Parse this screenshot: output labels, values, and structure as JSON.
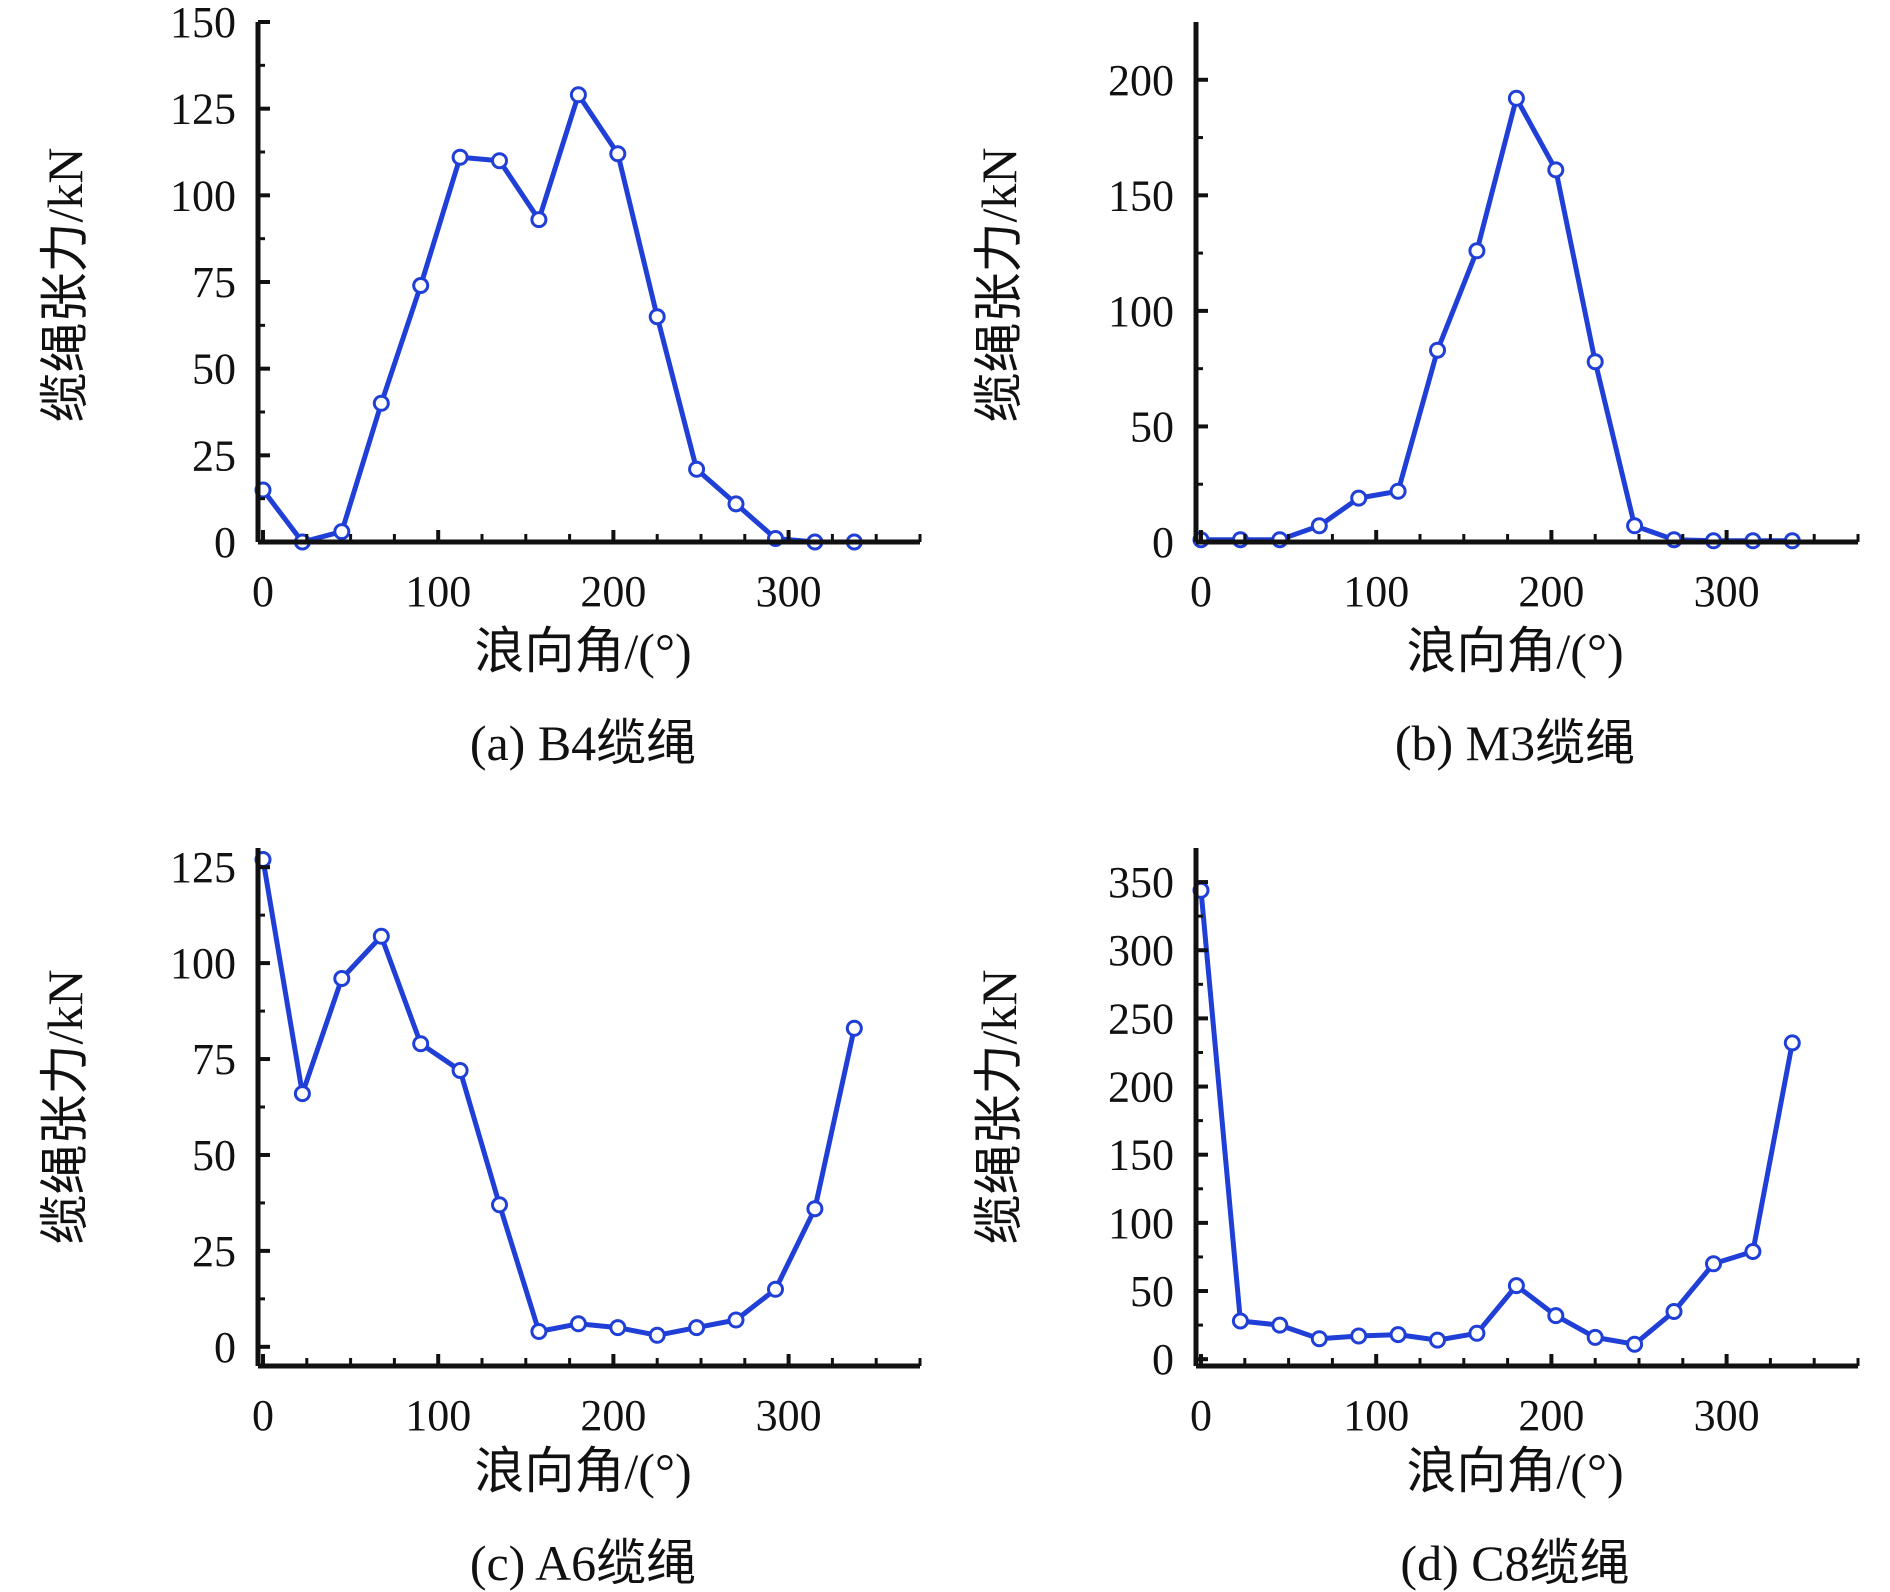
{
  "figure": {
    "style": {
      "line_color": "#1f3fd6",
      "marker_fill": "#ffffff",
      "axis_color": "#111111"
    }
  },
  "chart_data": [
    {
      "id": "a",
      "type": "line",
      "caption": "(a) B4缆绳",
      "xlabel": "浪向角/(°)",
      "ylabel": "缆绳张力/kN",
      "xlim": [
        0,
        375
      ],
      "ylim": [
        0,
        150
      ],
      "xticks": [
        0,
        100,
        200,
        300
      ],
      "xtick_labels": [
        "0",
        "100",
        "200",
        "300"
      ],
      "yticks": [
        0,
        25,
        50,
        75,
        100,
        125,
        150
      ],
      "ytick_labels": [
        "0",
        "25",
        "50",
        "75",
        "100",
        "125",
        "150"
      ],
      "grid": false,
      "series": [
        {
          "name": "B4缆绳",
          "x": [
            0,
            22.5,
            45,
            67.5,
            90,
            112.5,
            135,
            157.5,
            180,
            202.5,
            225,
            247.5,
            270,
            292.5,
            315,
            337.5
          ],
          "y": [
            15,
            0,
            3,
            40,
            74,
            111,
            110,
            93,
            129,
            112,
            65,
            21,
            11,
            1,
            0,
            0
          ]
        }
      ]
    },
    {
      "id": "b",
      "type": "line",
      "caption": "(b) M3缆绳",
      "xlabel": "浪向角/(°)",
      "ylabel": "缆绳张力/kN",
      "xlim": [
        0,
        375
      ],
      "ylim": [
        0,
        225
      ],
      "xticks": [
        0,
        100,
        200,
        300
      ],
      "xtick_labels": [
        "0",
        "100",
        "200",
        "300"
      ],
      "yticks": [
        0,
        50,
        100,
        150,
        200
      ],
      "ytick_labels": [
        "0",
        "50",
        "100",
        "150",
        "200"
      ],
      "grid": false,
      "series": [
        {
          "name": "M3缆绳",
          "x": [
            0,
            22.5,
            45,
            67.5,
            90,
            112.5,
            135,
            157.5,
            180,
            202.5,
            225,
            247.5,
            270,
            292.5,
            315,
            337.5
          ],
          "y": [
            1,
            1,
            1,
            7,
            19,
            22,
            83,
            126,
            192,
            161,
            78,
            7,
            1,
            0.5,
            0.5,
            0.5
          ]
        }
      ]
    },
    {
      "id": "c",
      "type": "line",
      "caption": "(c) A6缆绳",
      "xlabel": "浪向角/(°)",
      "ylabel": "缆绳张力/kN",
      "xlim": [
        0,
        375
      ],
      "ylim": [
        -5,
        130
      ],
      "xticks": [
        0,
        100,
        200,
        300
      ],
      "xtick_labels": [
        "0",
        "100",
        "200",
        "300"
      ],
      "yticks": [
        0,
        25,
        50,
        75,
        100,
        125
      ],
      "ytick_labels": [
        "0",
        "25",
        "50",
        "75",
        "100",
        "125"
      ],
      "grid": false,
      "series": [
        {
          "name": "A6缆绳",
          "x": [
            0,
            22.5,
            45,
            67.5,
            90,
            112.5,
            135,
            157.5,
            180,
            202.5,
            225,
            247.5,
            270,
            292.5,
            315,
            337.5
          ],
          "y": [
            127,
            66,
            96,
            107,
            79,
            72,
            37,
            4,
            6,
            5,
            3,
            5,
            7,
            15,
            36,
            83
          ]
        }
      ]
    },
    {
      "id": "d",
      "type": "line",
      "caption": "(d) C8缆绳",
      "xlabel": "浪向角/(°)",
      "ylabel": "缆绳张力/kN",
      "xlim": [
        0,
        375
      ],
      "ylim": [
        -5,
        375
      ],
      "xticks": [
        0,
        100,
        200,
        300
      ],
      "xtick_labels": [
        "0",
        "100",
        "200",
        "300"
      ],
      "yticks": [
        0,
        50,
        100,
        150,
        200,
        250,
        300,
        350
      ],
      "ytick_labels": [
        "0",
        "50",
        "100",
        "150",
        "200",
        "250",
        "300",
        "350"
      ],
      "grid": false,
      "series": [
        {
          "name": "C8缆绳",
          "x": [
            0,
            22.5,
            45,
            67.5,
            90,
            112.5,
            135,
            157.5,
            180,
            202.5,
            225,
            247.5,
            270,
            292.5,
            315,
            337.5
          ],
          "y": [
            344,
            28,
            25,
            15,
            17,
            18,
            14,
            19,
            54,
            32,
            16,
            11,
            35,
            70,
            79,
            232
          ]
        }
      ]
    }
  ]
}
